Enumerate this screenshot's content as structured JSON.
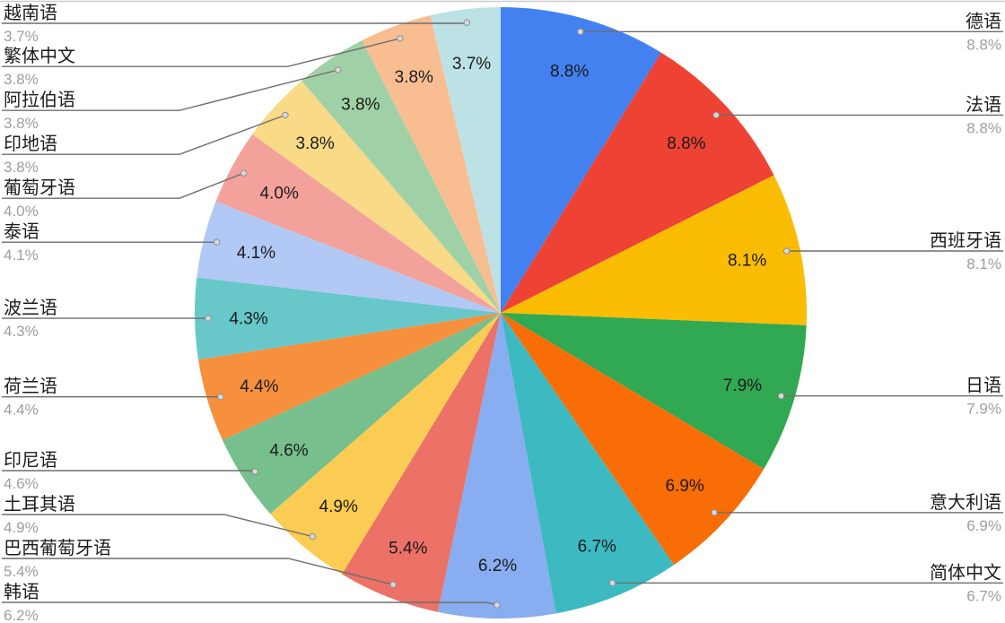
{
  "chart_data": {
    "type": "pie",
    "title": "",
    "legend_position": "callout-labels-both-sides",
    "start_angle": "top-clockwise",
    "background_color": "#ffffff",
    "callout_line_color": "#6e6e6e",
    "outer_percent_color": "#9e9e9e",
    "label_color": "#1c1c1c",
    "slices": [
      {
        "label": "德语",
        "value": 8.8,
        "display": "8.8%",
        "color": "#4481F0"
      },
      {
        "label": "法语",
        "value": 8.8,
        "display": "8.8%",
        "color": "#EE4334"
      },
      {
        "label": "西班牙语",
        "value": 8.1,
        "display": "8.1%",
        "color": "#FBBC04"
      },
      {
        "label": "日语",
        "value": 7.9,
        "display": "7.9%",
        "color": "#31A852"
      },
      {
        "label": "意大利语",
        "value": 6.9,
        "display": "6.9%",
        "color": "#F96D07"
      },
      {
        "label": "简体中文",
        "value": 6.7,
        "display": "6.7%",
        "color": "#3DBAC1"
      },
      {
        "label": "韩语",
        "value": 6.2,
        "display": "6.2%",
        "color": "#88ADF1"
      },
      {
        "label": "巴西葡萄牙语",
        "value": 5.4,
        "display": "5.4%",
        "color": "#EC7166"
      },
      {
        "label": "土耳其语",
        "value": 4.9,
        "display": "4.9%",
        "color": "#FBCC53"
      },
      {
        "label": "印尼语",
        "value": 4.6,
        "display": "4.6%",
        "color": "#77C08D"
      },
      {
        "label": "荷兰语",
        "value": 4.4,
        "display": "4.4%",
        "color": "#F7903D"
      },
      {
        "label": "波兰语",
        "value": 4.3,
        "display": "4.3%",
        "color": "#67C7C9"
      },
      {
        "label": "泰语",
        "value": 4.1,
        "display": "4.1%",
        "color": "#B2C8F5"
      },
      {
        "label": "葡萄牙语",
        "value": 4.0,
        "display": "4.0%",
        "color": "#F3A29B"
      },
      {
        "label": "印地语",
        "value": 3.8,
        "display": "3.8%",
        "color": "#F8DA87"
      },
      {
        "label": "阿拉伯语",
        "value": 3.8,
        "display": "3.8%",
        "color": "#A0D1A6"
      },
      {
        "label": "繁体中文",
        "value": 3.8,
        "display": "3.8%",
        "color": "#F8BE92"
      },
      {
        "label": "越南语",
        "value": 3.7,
        "display": "3.7%",
        "color": "#BCE2E6"
      }
    ]
  }
}
